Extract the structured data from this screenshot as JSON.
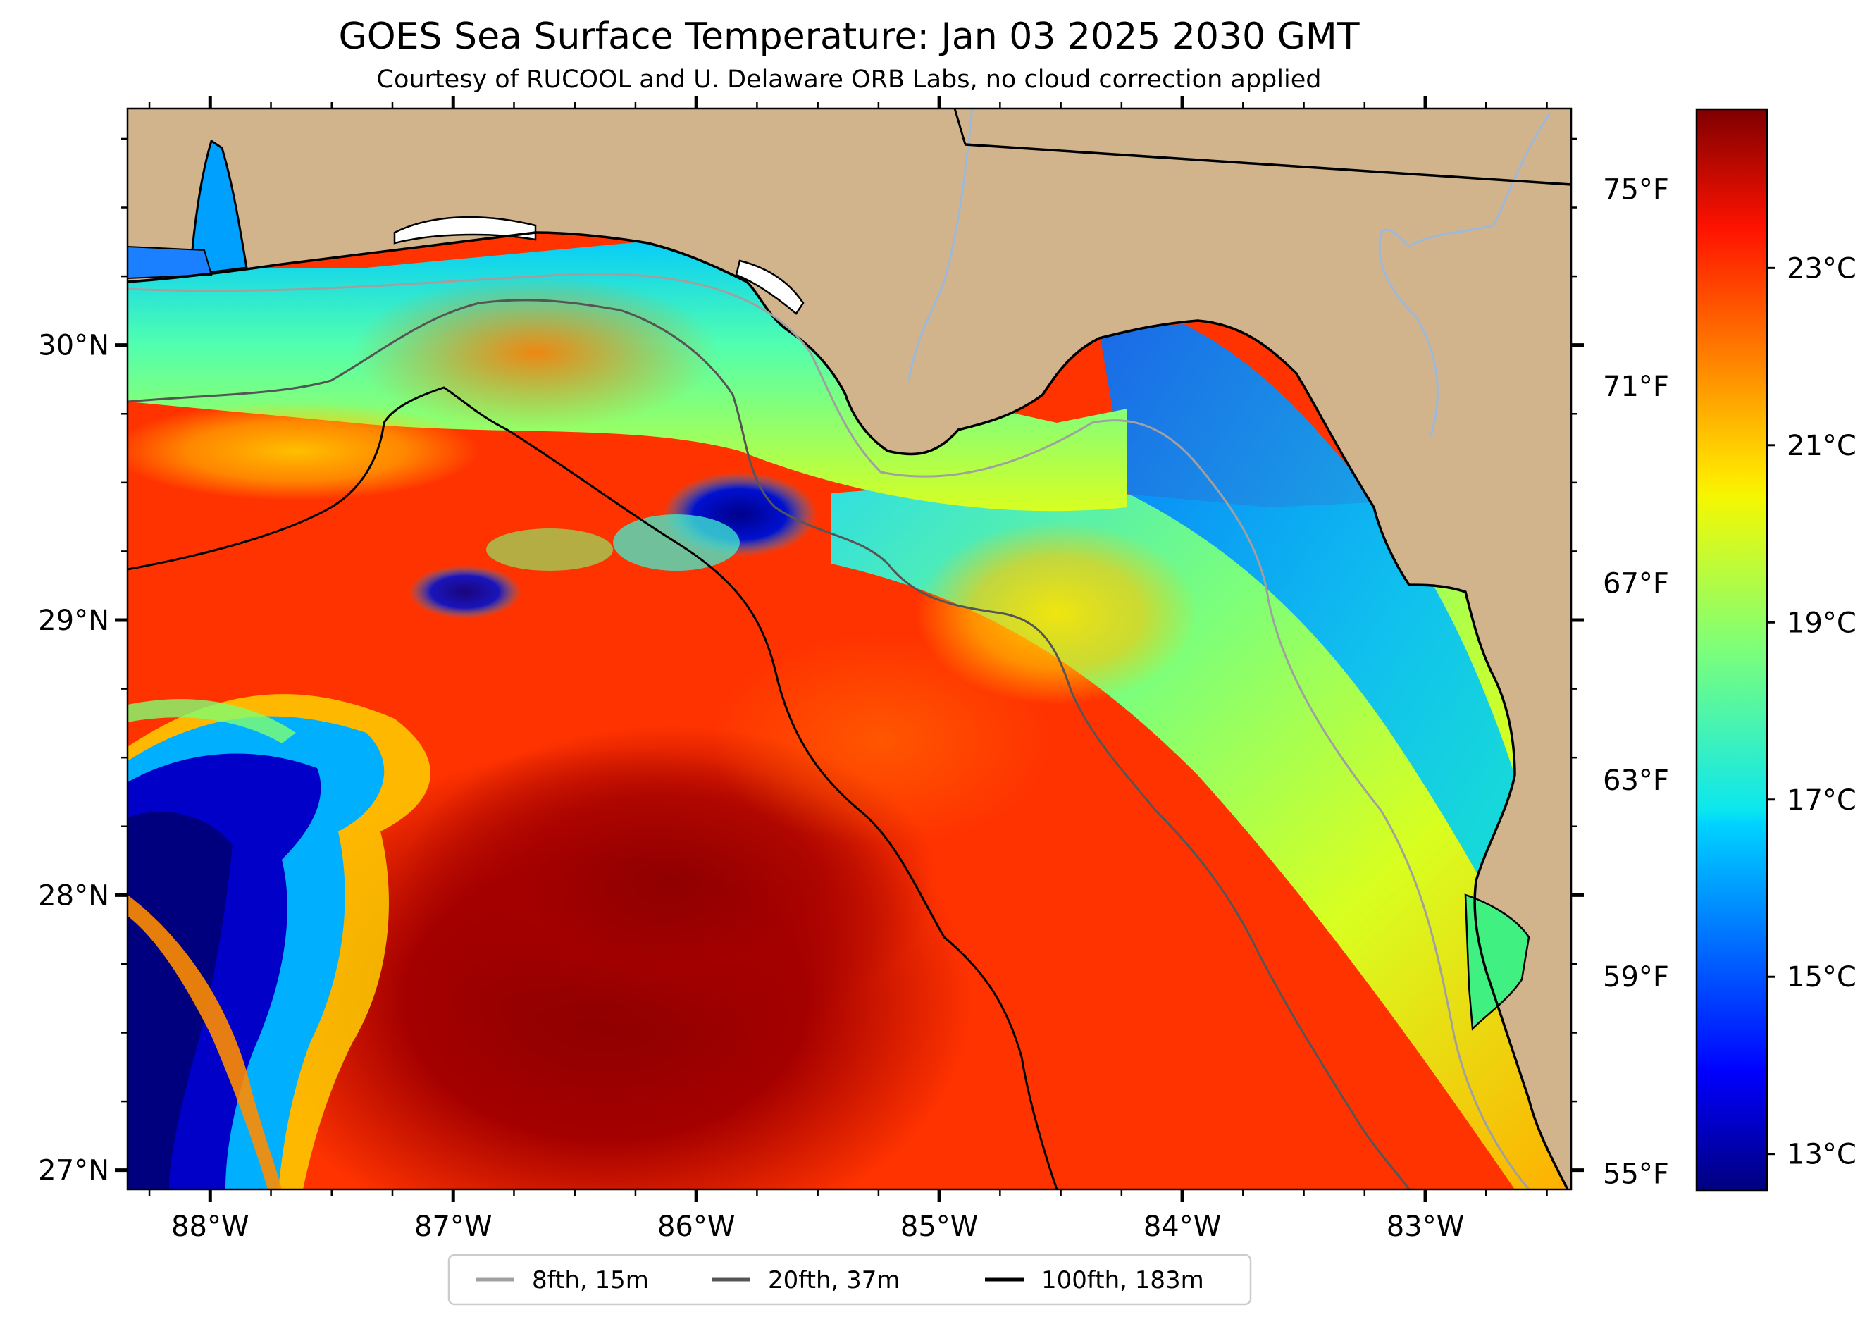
{
  "title": "GOES Sea Surface Temperature: Jan 03 2025 2030 GMT",
  "subtitle": "Courtesy of RUCOOL and U. Delaware ORB Labs, no cloud correction applied",
  "map": {
    "lon_range": [
      -88.34,
      -82.4
    ],
    "lat_range": [
      26.93,
      30.86
    ],
    "lon_ticks": [
      {
        "value": -88,
        "label": "88°W"
      },
      {
        "value": -87,
        "label": "87°W"
      },
      {
        "value": -86,
        "label": "86°W"
      },
      {
        "value": -85,
        "label": "85°W"
      },
      {
        "value": -84,
        "label": "84°W"
      },
      {
        "value": -83,
        "label": "83°W"
      }
    ],
    "lat_ticks": [
      {
        "value": 30,
        "label": "30°N"
      },
      {
        "value": 29,
        "label": "29°N"
      },
      {
        "value": 28,
        "label": "28°N"
      },
      {
        "value": 27,
        "label": "27°N"
      }
    ],
    "land_color": "#d2b48c",
    "water_color": "#9db8d9"
  },
  "fahrenheit_axis": {
    "ticks": [
      {
        "value": 75,
        "label": "75°F"
      },
      {
        "value": 71,
        "label": "71°F"
      },
      {
        "value": 67,
        "label": "67°F"
      },
      {
        "value": 63,
        "label": "63°F"
      },
      {
        "value": 59,
        "label": "59°F"
      },
      {
        "value": 55,
        "label": "55°F"
      }
    ]
  },
  "colorbar": {
    "range_c": [
      12.6,
      24.8
    ],
    "colormap": "jet",
    "ticks": [
      {
        "value": 23,
        "label": "23°C"
      },
      {
        "value": 21,
        "label": "21°C"
      },
      {
        "value": 19,
        "label": "19°C"
      },
      {
        "value": 17,
        "label": "17°C"
      },
      {
        "value": 15,
        "label": "15°C"
      },
      {
        "value": 13,
        "label": "13°C"
      }
    ]
  },
  "legend": {
    "placement": "bottom-center",
    "items": [
      {
        "label": "8fth, 15m",
        "color": "#a0a0a0"
      },
      {
        "label": "20fth, 37m",
        "color": "#555555"
      },
      {
        "label": "100fth, 183m",
        "color": "#000000"
      }
    ]
  }
}
